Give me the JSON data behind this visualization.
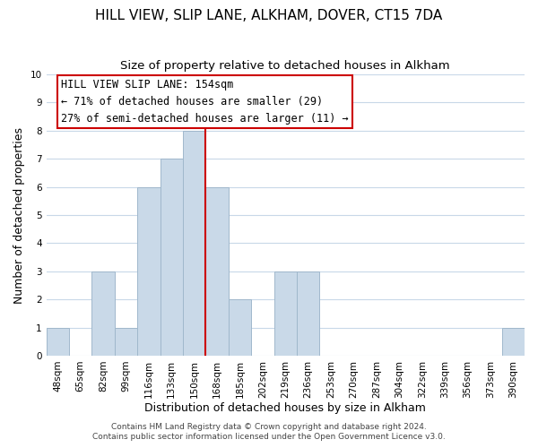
{
  "title": "HILL VIEW, SLIP LANE, ALKHAM, DOVER, CT15 7DA",
  "subtitle": "Size of property relative to detached houses in Alkham",
  "xlabel": "Distribution of detached houses by size in Alkham",
  "ylabel": "Number of detached properties",
  "bin_labels": [
    "48sqm",
    "65sqm",
    "82sqm",
    "99sqm",
    "116sqm",
    "133sqm",
    "150sqm",
    "168sqm",
    "185sqm",
    "202sqm",
    "219sqm",
    "236sqm",
    "253sqm",
    "270sqm",
    "287sqm",
    "304sqm",
    "322sqm",
    "339sqm",
    "356sqm",
    "373sqm",
    "390sqm"
  ],
  "bar_heights": [
    1,
    0,
    3,
    1,
    6,
    7,
    8,
    6,
    2,
    0,
    3,
    3,
    0,
    0,
    0,
    0,
    0,
    0,
    0,
    0,
    1
  ],
  "bar_color": "#c9d9e8",
  "bar_edge_color": "#a0b8cc",
  "ylim": [
    0,
    10
  ],
  "yticks": [
    0,
    1,
    2,
    3,
    4,
    5,
    6,
    7,
    8,
    9,
    10
  ],
  "vline_x": 6.5,
  "vline_color": "#cc0000",
  "ann_line1": "HILL VIEW SLIP LANE: 154sqm",
  "ann_line2": "← 71% of detached houses are smaller (29)",
  "ann_line3": "27% of semi-detached houses are larger (11) →",
  "annotation_box_color": "#cc0000",
  "annotation_box_fill": "#ffffff",
  "footer_line1": "Contains HM Land Registry data © Crown copyright and database right 2024.",
  "footer_line2": "Contains public sector information licensed under the Open Government Licence v3.0.",
  "background_color": "#ffffff",
  "grid_color": "#c8d8e8",
  "title_fontsize": 11,
  "subtitle_fontsize": 9.5,
  "axis_label_fontsize": 9,
  "tick_fontsize": 7.5,
  "annotation_fontsize": 8.5,
  "footer_fontsize": 6.5
}
